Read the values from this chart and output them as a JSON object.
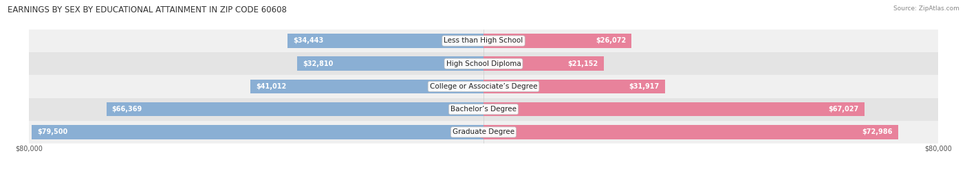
{
  "title": "EARNINGS BY SEX BY EDUCATIONAL ATTAINMENT IN ZIP CODE 60608",
  "source": "Source: ZipAtlas.com",
  "categories": [
    "Less than High School",
    "High School Diploma",
    "College or Associate’s Degree",
    "Bachelor’s Degree",
    "Graduate Degree"
  ],
  "male_values": [
    34443,
    32810,
    41012,
    66369,
    79500
  ],
  "female_values": [
    26072,
    21152,
    31917,
    67027,
    72986
  ],
  "max_value": 80000,
  "male_color": "#8aafd4",
  "female_color": "#e8829b",
  "row_bg_colors": [
    "#f0f0f0",
    "#e4e4e4"
  ],
  "title_fontsize": 8.5,
  "source_fontsize": 6.5,
  "label_fontsize": 7.5,
  "value_fontsize": 7.0,
  "axis_label_fontsize": 7.0,
  "legend_fontsize": 7.5,
  "bar_height": 0.62,
  "background_color": "#ffffff",
  "text_dark": "#444444",
  "text_white": "#ffffff"
}
